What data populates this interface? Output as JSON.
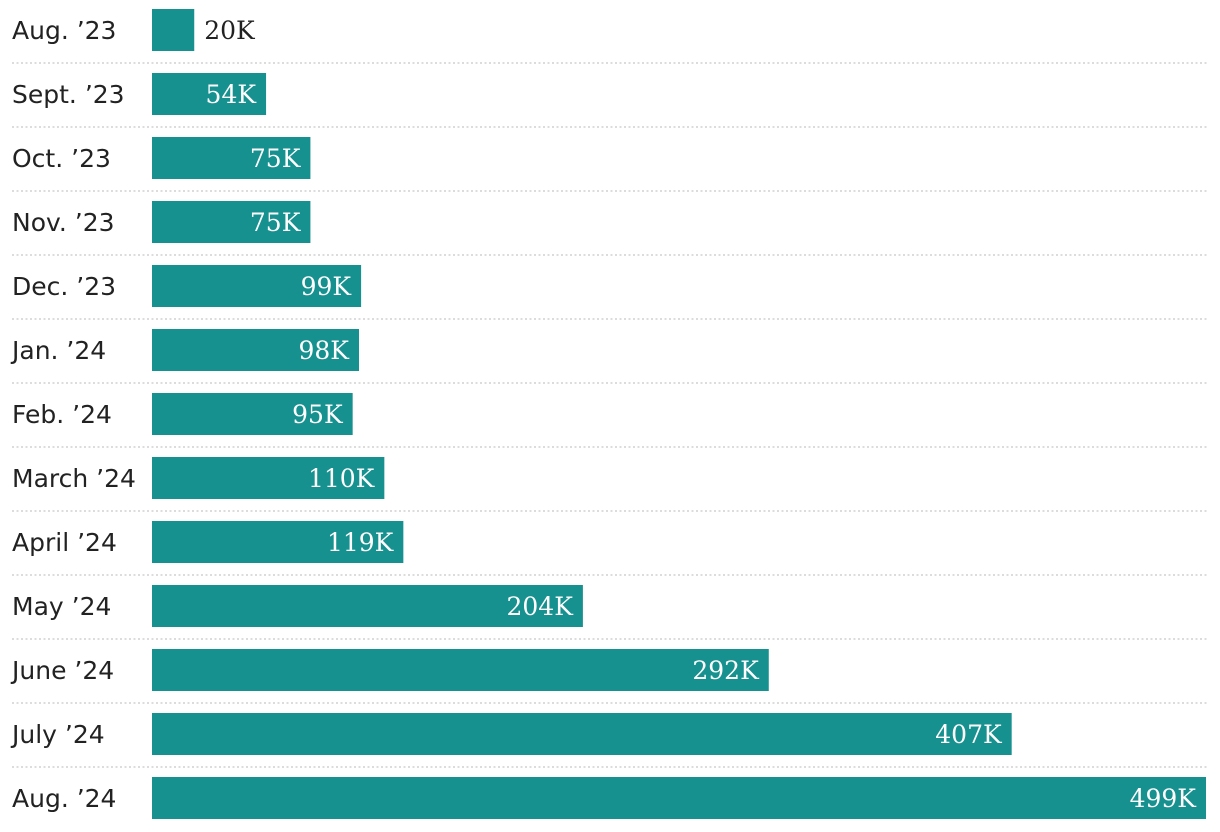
{
  "chart_data": {
    "type": "bar",
    "orientation": "horizontal",
    "categories": [
      "Aug. ’23",
      "Sept. ’23",
      "Oct. ’23",
      "Nov. ’23",
      "Dec. ’23",
      "Jan. ’24",
      "Feb. ’24",
      "March ’24",
      "April ’24",
      "May ’24",
      "June ’24",
      "July ’24",
      "Aug. ’24"
    ],
    "values": [
      20,
      54,
      75,
      75,
      99,
      98,
      95,
      110,
      119,
      204,
      292,
      407,
      499
    ],
    "value_labels": [
      "20K",
      "54K",
      "75K",
      "75K",
      "99K",
      "98K",
      "95K",
      "110K",
      "119K",
      "204K",
      "292K",
      "407K",
      "499K"
    ],
    "units": "thousands",
    "xlim": [
      0,
      499
    ],
    "grid": false,
    "legend": "none",
    "colors": {
      "bar": "#17918f",
      "label_inside": "#ffffff",
      "label_outside": "#222222",
      "divider": "#c8c8c8"
    }
  }
}
